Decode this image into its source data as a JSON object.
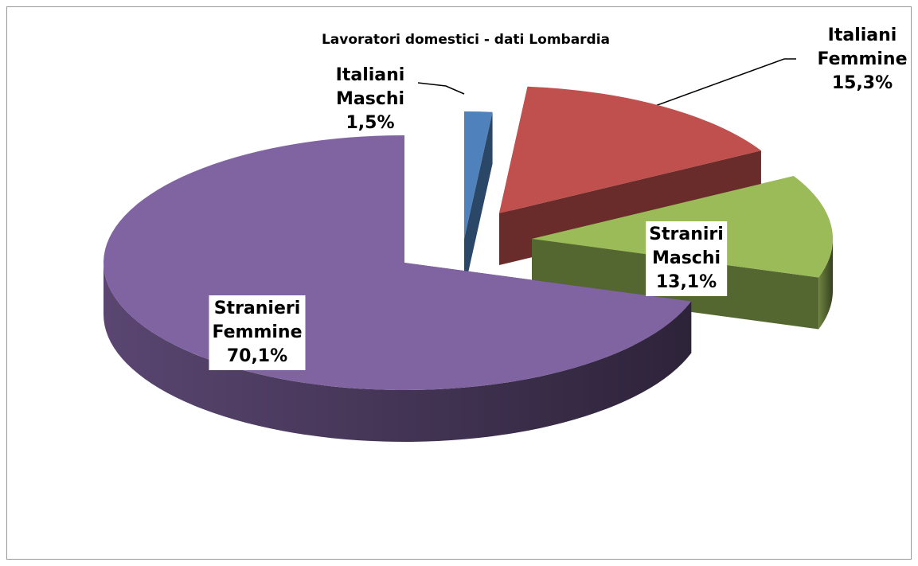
{
  "chart_data": {
    "type": "pie",
    "title": "Lavoratori domestici - dati Lombardia",
    "categories": [
      "Italiani Maschi",
      "Italiani Femmine",
      "Straniri Maschi",
      "Stranieri Femmine"
    ],
    "values": [
      1.5,
      15.3,
      13.1,
      70.1
    ],
    "value_labels": [
      "1,5%",
      "15,3%",
      "13,1%",
      "70,1%"
    ],
    "colors": [
      "#4f81bd",
      "#c0504d",
      "#9bbb59",
      "#8064a2"
    ]
  }
}
